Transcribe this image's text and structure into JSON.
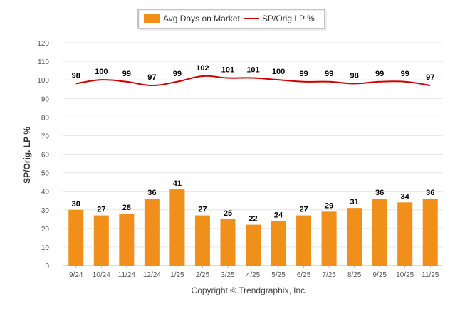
{
  "chart_data": {
    "type": "bar",
    "categories": [
      "9/24",
      "10/24",
      "11/24",
      "12/24",
      "1/25",
      "2/25",
      "3/25",
      "4/25",
      "5/25",
      "6/25",
      "7/25",
      "8/25",
      "9/25",
      "10/25",
      "11/25"
    ],
    "series": [
      {
        "name": "Avg Days on Market",
        "type": "bar",
        "color": "#F0901A",
        "values": [
          30,
          27,
          28,
          36,
          41,
          27,
          25,
          22,
          24,
          27,
          29,
          31,
          36,
          34,
          36
        ]
      },
      {
        "name": "SP/Orig LP %",
        "type": "line",
        "color": "#CC0000",
        "values": [
          98,
          100,
          99,
          97,
          99,
          102,
          101,
          101,
          100,
          99,
          99,
          98,
          99,
          99,
          97
        ]
      }
    ],
    "title": "",
    "xlabel": "",
    "ylabel": "SP/Orig. LP %",
    "ylim": [
      0,
      120
    ],
    "yticks": [
      0,
      10,
      20,
      30,
      40,
      50,
      60,
      70,
      80,
      90,
      100,
      110,
      120
    ],
    "grid": true,
    "legend": "top-center"
  },
  "footer": {
    "copyright": "Copyright © Trendgraphix, Inc."
  }
}
